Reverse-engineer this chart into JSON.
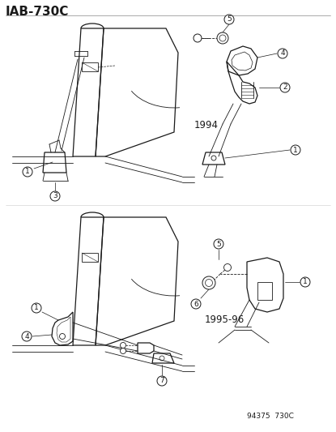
{
  "title": "IAB-730C",
  "footer": "94375  730C",
  "bg_color": "#ffffff",
  "line_color": "#1a1a1a",
  "year1": "1994",
  "year2": "1995-96",
  "title_fontsize": 11,
  "footer_fontsize": 6.5,
  "label_r": 6,
  "label_fontsize": 6.5
}
